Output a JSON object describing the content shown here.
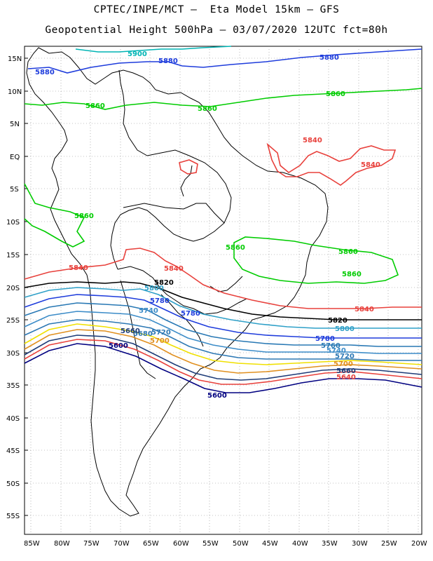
{
  "title_line1": "CPTEC/INPE/MCT –  Eta Model 15km – GFS",
  "title_line2": "Geopotential Height 500hPa – 03/07/2020 12UTC fct=80h",
  "lat_ticks": [
    "15N",
    "10N",
    "5N",
    "EQ",
    "5S",
    "10S",
    "15S",
    "20S",
    "25S",
    "30S",
    "35S",
    "40S",
    "45S",
    "50S",
    "55S"
  ],
  "lon_ticks": [
    "85W",
    "80W",
    "75W",
    "70W",
    "65W",
    "60W",
    "55W",
    "50W",
    "45W",
    "40W",
    "35W",
    "30W",
    "25W",
    "20W"
  ],
  "contours": [
    {
      "level": "5900",
      "color": "#00b4b4"
    },
    {
      "level": "5880",
      "color": "#1e3cdc"
    },
    {
      "level": "5860",
      "color": "#00cc00"
    },
    {
      "level": "5840",
      "color": "#e8413c"
    },
    {
      "level": "5820",
      "color": "#000000"
    },
    {
      "level": "5800",
      "color": "#2fa0c8"
    },
    {
      "level": "5780",
      "color": "#1e3cdc"
    },
    {
      "level": "5760",
      "color": "#2878b4"
    },
    {
      "level": "5740",
      "color": "#3c8cc8"
    },
    {
      "level": "5720",
      "color": "#2d78b4"
    },
    {
      "level": "5700",
      "color": "#f0e000"
    },
    {
      "level": "5680",
      "color": "#e09020"
    },
    {
      "level": "5660",
      "color": "#1e3c78"
    },
    {
      "level": "5640",
      "color": "#e8413c"
    },
    {
      "level": "5600",
      "color": "#000080"
    }
  ]
}
